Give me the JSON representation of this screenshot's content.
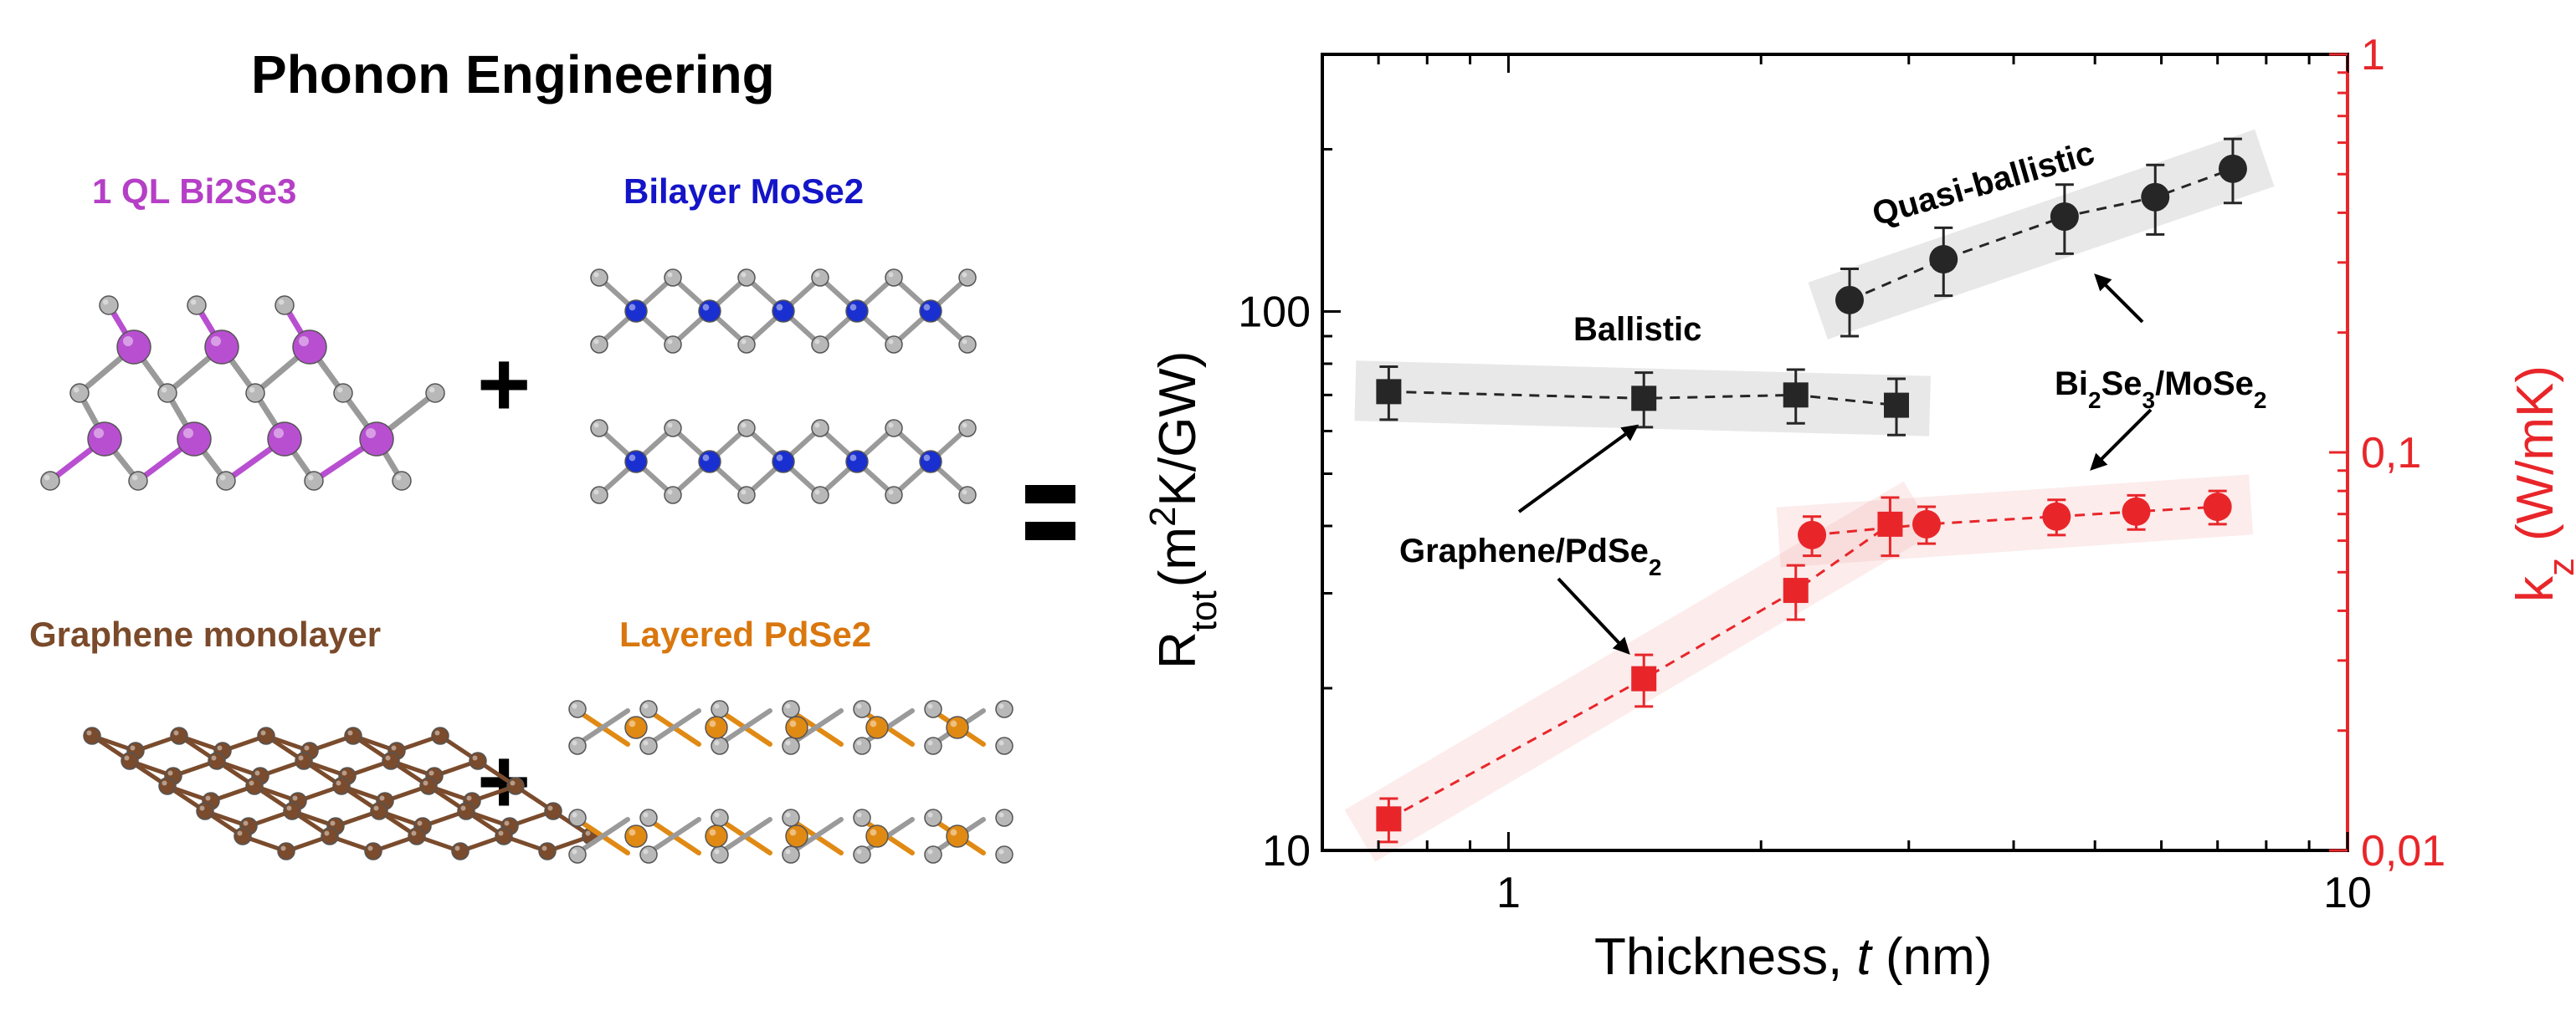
{
  "left_panel": {
    "title": "Phonon Engineering",
    "materials": [
      {
        "label": "1 QL Bi2Se3",
        "color": "#b53fc6"
      },
      {
        "label": "Bilayer MoSe2",
        "color": "#1414c8"
      },
      {
        "label": "Graphene monolayer",
        "color": "#7a4a2a"
      },
      {
        "label": "Layered PdSe2",
        "color": "#d9770e"
      }
    ],
    "plus_symbol": "+",
    "atom_colors": {
      "bi": "#b84fd0",
      "se": "#b8b8b8",
      "mo": "#1a2fcf",
      "c": "#7a4b2c",
      "pd": "#e08a14"
    }
  },
  "chart_data": {
    "type": "scatter",
    "xlabel": "Thickness, t (nm)",
    "ylabel_left": "R_tot (m^2K/GW)",
    "ylabel_right": "k_z (W/mK)",
    "x_scale": "log",
    "y_scale": "log",
    "xlim": [
      0.6,
      10
    ],
    "ylim_left": [
      10,
      300
    ],
    "ylim_right": [
      0.01,
      1
    ],
    "x_ticks": [
      {
        "value": 1,
        "label": "1"
      },
      {
        "value": 10,
        "label": "10"
      }
    ],
    "y_ticks_left": [
      {
        "value": 10,
        "label": "10"
      },
      {
        "value": 100,
        "label": "100"
      }
    ],
    "y_ticks_right": [
      {
        "value": 0.01,
        "label": "0,01"
      },
      {
        "value": 0.1,
        "label": "0,1"
      },
      {
        "value": 1,
        "label": "1"
      }
    ],
    "grid": false,
    "colors": {
      "black_series": "#262626",
      "red_series": "#e8262a",
      "right_axis": "#e8262a"
    },
    "series": [
      {
        "marker": "square",
        "color": "black",
        "axis": "left",
        "points": [
          {
            "x": 0.72,
            "y": 71,
            "err": 8
          },
          {
            "x": 1.45,
            "y": 69,
            "err": 8
          },
          {
            "x": 2.2,
            "y": 70,
            "err": 8
          },
          {
            "x": 2.9,
            "y": 67,
            "err": 8
          }
        ]
      },
      {
        "marker": "circle",
        "color": "black",
        "axis": "left",
        "points": [
          {
            "x": 2.55,
            "y": 105,
            "err": 15
          },
          {
            "x": 3.3,
            "y": 125,
            "err": 18
          },
          {
            "x": 4.6,
            "y": 150,
            "err": 22
          },
          {
            "x": 5.9,
            "y": 163,
            "err": 24
          },
          {
            "x": 7.3,
            "y": 184,
            "err": 25
          }
        ]
      },
      {
        "marker": "square",
        "color": "red",
        "axis": "right",
        "points": [
          {
            "x": 0.72,
            "y": 0.012,
            "err": 0.0015
          },
          {
            "x": 1.45,
            "y": 0.027,
            "err": 0.004
          },
          {
            "x": 2.2,
            "y": 0.045,
            "err": 0.007
          },
          {
            "x": 2.85,
            "y": 0.066,
            "err": 0.011
          }
        ]
      },
      {
        "marker": "circle",
        "color": "red",
        "axis": "right",
        "points": [
          {
            "x": 2.3,
            "y": 0.062,
            "err": 0.007
          },
          {
            "x": 3.15,
            "y": 0.066,
            "err": 0.007
          },
          {
            "x": 4.5,
            "y": 0.069,
            "err": 0.007
          },
          {
            "x": 5.6,
            "y": 0.071,
            "err": 0.007
          },
          {
            "x": 7.0,
            "y": 0.073,
            "err": 0.007
          }
        ]
      }
    ],
    "annotations": {
      "ballistic": "Ballistic",
      "quasi_ballistic": "Quasi-ballistic",
      "graphene_pdse2": "Graphene/PdSe2",
      "bi2se3_mose2": "Bi2Se3/MoSe2"
    }
  }
}
